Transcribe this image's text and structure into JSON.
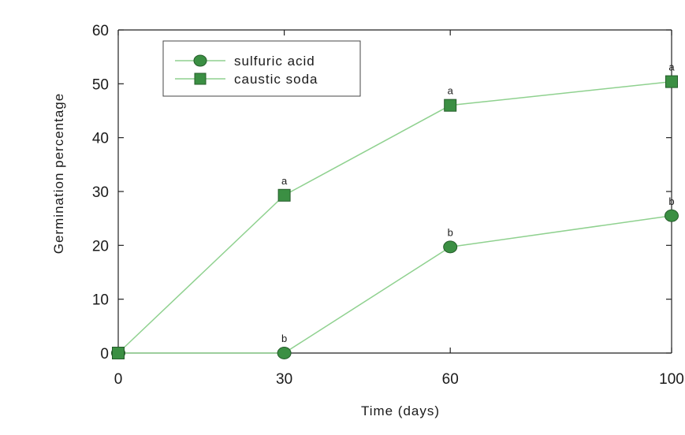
{
  "chart_data": {
    "type": "line",
    "title": "",
    "xlabel": "Time (days)",
    "ylabel": "Germination percentage",
    "x": [
      0,
      30,
      60,
      100
    ],
    "xlim": [
      0,
      100
    ],
    "ylim": [
      0,
      60
    ],
    "xticks": [
      0,
      30,
      60,
      100
    ],
    "yticks": [
      0,
      10,
      20,
      30,
      40,
      50,
      60
    ],
    "grid": false,
    "legend_position": "top-left",
    "line_color": "#8fd18f",
    "marker_color": "#3b8f43",
    "series": [
      {
        "name": "sulfuric acid",
        "marker": "circle",
        "values": [
          0,
          0,
          19.7,
          25.5
        ],
        "annotations": [
          "",
          "b",
          "b",
          "b"
        ]
      },
      {
        "name": "caustic soda",
        "marker": "square",
        "values": [
          0,
          29.3,
          46,
          50.4
        ],
        "annotations": [
          "",
          "a",
          "a",
          "a"
        ]
      }
    ]
  }
}
